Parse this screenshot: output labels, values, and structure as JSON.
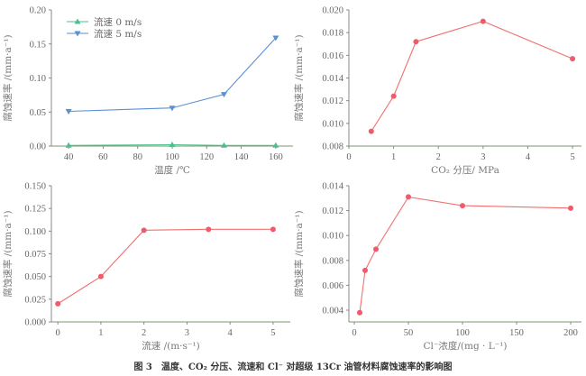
{
  "caption": "图 3　温度、CO₂ 分压、流速和 Cl⁻ 对超级 13Cr 油管材料腐蚀速率的影响图",
  "chart_data": [
    {
      "type": "line",
      "xlabel": "温度 /℃",
      "ylabel": "腐蚀速率 /(mm·a⁻¹)",
      "xlim": [
        30,
        170
      ],
      "ylim": [
        0,
        0.2
      ],
      "xticks": [
        "40",
        "60",
        "80",
        "100",
        "120",
        "140",
        "160"
      ],
      "yticks": [
        "0.00",
        "0.05",
        "0.10",
        "0.15",
        "0.20"
      ],
      "legend": "top-left",
      "series": [
        {
          "name": "流速  0 m/s",
          "color": "#4cbf8f",
          "marker": "triangle-up",
          "x": [
            40,
            100,
            130,
            160
          ],
          "y": [
            0.001,
            0.002,
            0.001,
            0.001
          ]
        },
        {
          "name": "流速  5 m/s",
          "color": "#5b8fd4",
          "marker": "triangle-down",
          "x": [
            40,
            100,
            130,
            160
          ],
          "y": [
            0.051,
            0.056,
            0.076,
            0.159
          ]
        }
      ]
    },
    {
      "type": "line",
      "xlabel": "CO₂ 分压/ MPa",
      "ylabel": "腐蚀速率 /(mm·a⁻¹)",
      "xlim": [
        0,
        5.2
      ],
      "ylim": [
        0.008,
        0.02
      ],
      "xticks": [
        "0",
        "1",
        "2",
        "3",
        "4",
        "5"
      ],
      "yticks": [
        "0.008",
        "0.010",
        "0.012",
        "0.014",
        "0.016",
        "0.018",
        "0.020"
      ],
      "series": [
        {
          "name": "",
          "color": "#f07070",
          "marker": "circle",
          "x": [
            0.5,
            1,
            1.5,
            3,
            5
          ],
          "y": [
            0.0093,
            0.0124,
            0.0172,
            0.019,
            0.0157
          ]
        }
      ]
    },
    {
      "type": "line",
      "xlabel": "流速 /(m·s⁻¹)",
      "ylabel": "腐蚀速率 /(mm·a⁻¹)",
      "xlim": [
        -0.15,
        5.4
      ],
      "ylim": [
        0,
        0.15
      ],
      "xticks": [
        "0",
        "1",
        "2",
        "3",
        "4",
        "5"
      ],
      "yticks": [
        "0.000",
        "0.025",
        "0.050",
        "0.075",
        "0.100",
        "0.125",
        "0.150"
      ],
      "series": [
        {
          "name": "",
          "color": "#f07070",
          "marker": "circle",
          "x": [
            0,
            1,
            2,
            3.5,
            5
          ],
          "y": [
            0.02,
            0.05,
            0.101,
            0.102,
            0.102
          ]
        }
      ]
    },
    {
      "type": "line",
      "xlabel": "Cl⁻浓度/(mg · L⁻¹)",
      "ylabel": "腐蚀速率 /(mm·a⁻¹)",
      "xlim": [
        -5,
        210
      ],
      "ylim": [
        0.00306,
        0.014
      ],
      "xticks": [
        "0",
        "50",
        "100",
        "150",
        "200"
      ],
      "yticks": [
        "0.004",
        "0.006",
        "0.008",
        "0.010",
        "0.012",
        "0.014"
      ],
      "series": [
        {
          "name": "",
          "color": "#f07070",
          "marker": "circle",
          "x": [
            5,
            10,
            20,
            50,
            100,
            200
          ],
          "y": [
            0.0038,
            0.0072,
            0.0089,
            0.0131,
            0.0124,
            0.0122
          ]
        }
      ]
    }
  ]
}
